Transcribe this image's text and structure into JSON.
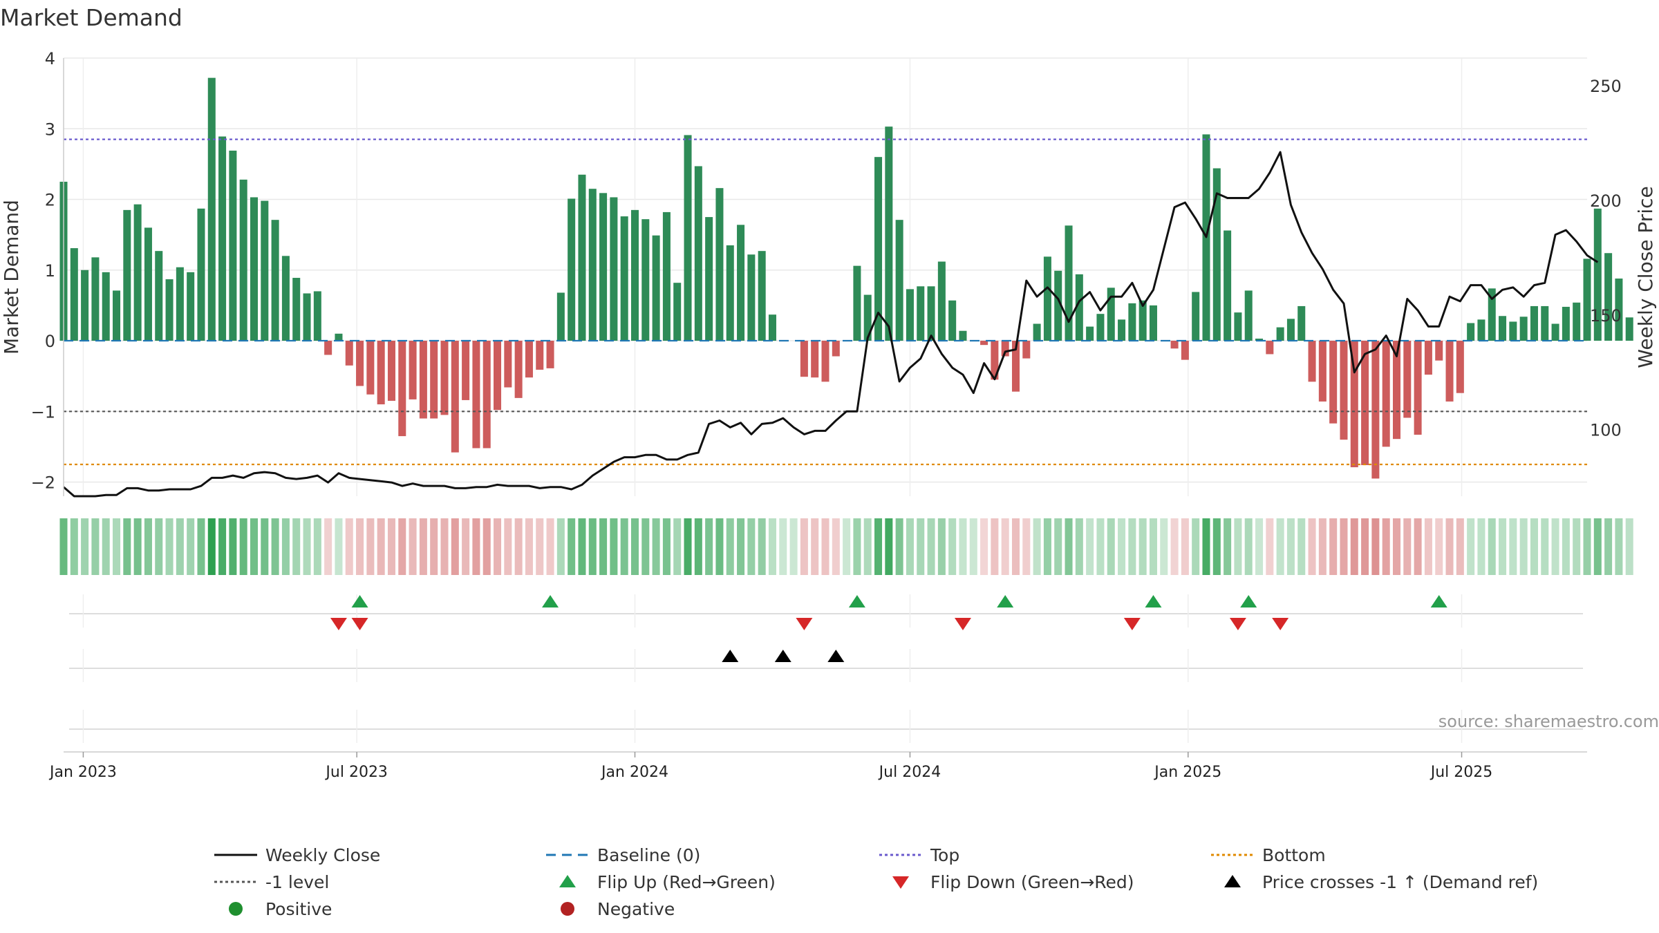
{
  "chart_data": {
    "type": "bar",
    "title": "Market Demand",
    "ylabel_left": "Market Demand",
    "ylabel_right": "Weekly Close Price",
    "ylim_left": [
      -2.2,
      4.0
    ],
    "ylim_right": [
      71,
      262
    ],
    "yticks_left": [
      4,
      3,
      2,
      1,
      0,
      -1,
      -2
    ],
    "ytick_labels_left": [
      "4",
      "3",
      "2",
      "1",
      "0",
      "−1",
      "−2"
    ],
    "yticks_right": [
      250,
      200,
      150,
      100
    ],
    "ytick_labels_right": [
      "250",
      "200",
      "150",
      "100"
    ],
    "x_start_date": "2022-12-19",
    "x_end_date": "2025-09-22",
    "x_ticks": [
      {
        "date": "2023-01-01",
        "label": "Jan 2023"
      },
      {
        "date": "2023-07-01",
        "label": "Jul 2023"
      },
      {
        "date": "2024-01-01",
        "label": "Jan 2024"
      },
      {
        "date": "2024-07-01",
        "label": "Jul 2024"
      },
      {
        "date": "2025-01-01",
        "label": "Jan 2025"
      },
      {
        "date": "2025-07-01",
        "label": "Jul 2025"
      }
    ],
    "first_week": "2022-12-19",
    "demand_values": [
      2.25,
      1.31,
      1.0,
      1.18,
      0.97,
      0.71,
      1.85,
      1.93,
      1.6,
      1.27,
      0.87,
      1.04,
      0.97,
      1.87,
      3.72,
      2.89,
      2.69,
      2.28,
      2.03,
      1.98,
      1.71,
      1.2,
      0.89,
      0.67,
      0.7,
      -0.2,
      0.1,
      -0.35,
      -0.64,
      -0.76,
      -0.9,
      -0.85,
      -1.35,
      -0.83,
      -1.1,
      -1.1,
      -1.05,
      -1.58,
      -0.84,
      -1.52,
      -1.52,
      -0.98,
      -0.66,
      -0.81,
      -0.52,
      -0.41,
      -0.39,
      0.68,
      2.01,
      2.35,
      2.15,
      2.09,
      2.03,
      1.76,
      1.85,
      1.72,
      1.49,
      1.82,
      0.82,
      2.91,
      2.47,
      1.75,
      2.16,
      1.35,
      1.64,
      1.22,
      1.27,
      0.37,
      0.0,
      0.0,
      -0.51,
      -0.52,
      -0.58,
      -0.22,
      0.0,
      1.06,
      0.65,
      2.6,
      3.03,
      1.71,
      0.73,
      0.77,
      0.77,
      1.12,
      0.57,
      0.14,
      0.0,
      -0.06,
      -0.55,
      -0.22,
      -0.72,
      -0.25,
      0.24,
      1.19,
      0.99,
      1.63,
      0.94,
      0.2,
      0.38,
      0.75,
      0.3,
      0.53,
      0.57,
      0.5,
      0.0,
      -0.11,
      -0.27,
      0.69,
      2.92,
      2.44,
      1.56,
      0.4,
      0.71,
      0.03,
      -0.19,
      0.19,
      0.31,
      0.49,
      -0.58,
      -0.86,
      -1.17,
      -1.4,
      -1.79,
      -1.76,
      -1.95,
      -1.5,
      -1.39,
      -1.09,
      -1.33,
      -0.48,
      -0.28,
      -0.86,
      -0.74,
      0.25,
      0.3,
      0.74,
      0.35,
      0.27,
      0.34,
      0.49,
      0.49,
      0.24,
      0.48,
      0.54,
      1.16,
      1.87,
      1.24,
      0.88,
      0.33
    ],
    "price_values": [
      75,
      71,
      71,
      71,
      71.5,
      71.5,
      74.5,
      74.5,
      73.5,
      73.5,
      74,
      74,
      74,
      75.5,
      79,
      79,
      80,
      79,
      81,
      81.5,
      81,
      79,
      78.5,
      79,
      80,
      77,
      81,
      79,
      78.5,
      78,
      77.5,
      77,
      75.5,
      76.5,
      75.5,
      75.5,
      75.5,
      74.5,
      74.5,
      75,
      75,
      76,
      75.5,
      75.5,
      75.5,
      74.5,
      75,
      75,
      74,
      76,
      80,
      83,
      86,
      88,
      88,
      89,
      89,
      87,
      87,
      89,
      90,
      102.5,
      104,
      101,
      103,
      98,
      102.5,
      103,
      105,
      101,
      98,
      99.5,
      99.5,
      104,
      108,
      108,
      140,
      151,
      145,
      121,
      127,
      131,
      141,
      133,
      127,
      124,
      116,
      129,
      122,
      134,
      135,
      165,
      158,
      162,
      157,
      147,
      156,
      160,
      152,
      158,
      158,
      164,
      154,
      161,
      179,
      197,
      199,
      192,
      184,
      203,
      201,
      201,
      201,
      205,
      212,
      221,
      198,
      186,
      177,
      170,
      161,
      155,
      125,
      133,
      135,
      141,
      132,
      157,
      152,
      145,
      145,
      158,
      156,
      163,
      163,
      157,
      161,
      162,
      158,
      163,
      164,
      185,
      187,
      182,
      176,
      173
    ],
    "baseline": 0,
    "top_level": 2.85,
    "minus_one_level": -1,
    "bottom_level": -1.75,
    "flip_up_dates": [
      "2023-07-03",
      "2023-11-06",
      "2024-05-27",
      "2024-09-02",
      "2024-12-09",
      "2025-02-10",
      "2025-06-16"
    ],
    "flip_down_dates": [
      "2023-06-19",
      "2023-07-03",
      "2024-04-22",
      "2024-08-05",
      "2024-11-25",
      "2025-02-03",
      "2025-03-03"
    ],
    "price_cross_dates": [
      "2024-03-04",
      "2024-04-08",
      "2024-05-13"
    ],
    "source_text": "source: sharemaestro.com",
    "colors": {
      "positive_bar": "#2e8b57",
      "negative_bar": "#cd5c5c",
      "price_line": "#111111",
      "baseline": "#1f77b4",
      "top": "#6a5acd",
      "minus_one": "#555555",
      "bottom": "#e08a00",
      "flip_up": "#22a04a",
      "flip_down": "#d62728",
      "price_cross": "#000000",
      "positive_dot": "#1f8f2f",
      "negative_dot": "#b22222"
    },
    "legend": [
      {
        "kind": "line",
        "label": "Weekly Close",
        "color": "#111111",
        "dash": "solid"
      },
      {
        "kind": "line",
        "label": "Baseline (0)",
        "color": "#1f77b4",
        "dash": "long"
      },
      {
        "kind": "line",
        "label": "Top",
        "color": "#6a5acd",
        "dash": "dot"
      },
      {
        "kind": "line",
        "label": "Bottom",
        "color": "#e08a00",
        "dash": "dot"
      },
      {
        "kind": "line",
        "label": "-1 level",
        "color": "#555555",
        "dash": "dot"
      },
      {
        "kind": "tri-up",
        "label": "Flip Up (Red→Green)",
        "color": "#22a04a"
      },
      {
        "kind": "tri-down",
        "label": "Flip Down (Green→Red)",
        "color": "#d62728"
      },
      {
        "kind": "tri-up",
        "label": "Price crosses -1 ↑ (Demand ref)",
        "color": "#000000"
      },
      {
        "kind": "dot",
        "label": "Positive",
        "color": "#1f8f2f"
      },
      {
        "kind": "dot",
        "label": "Negative",
        "color": "#b22222"
      }
    ]
  }
}
